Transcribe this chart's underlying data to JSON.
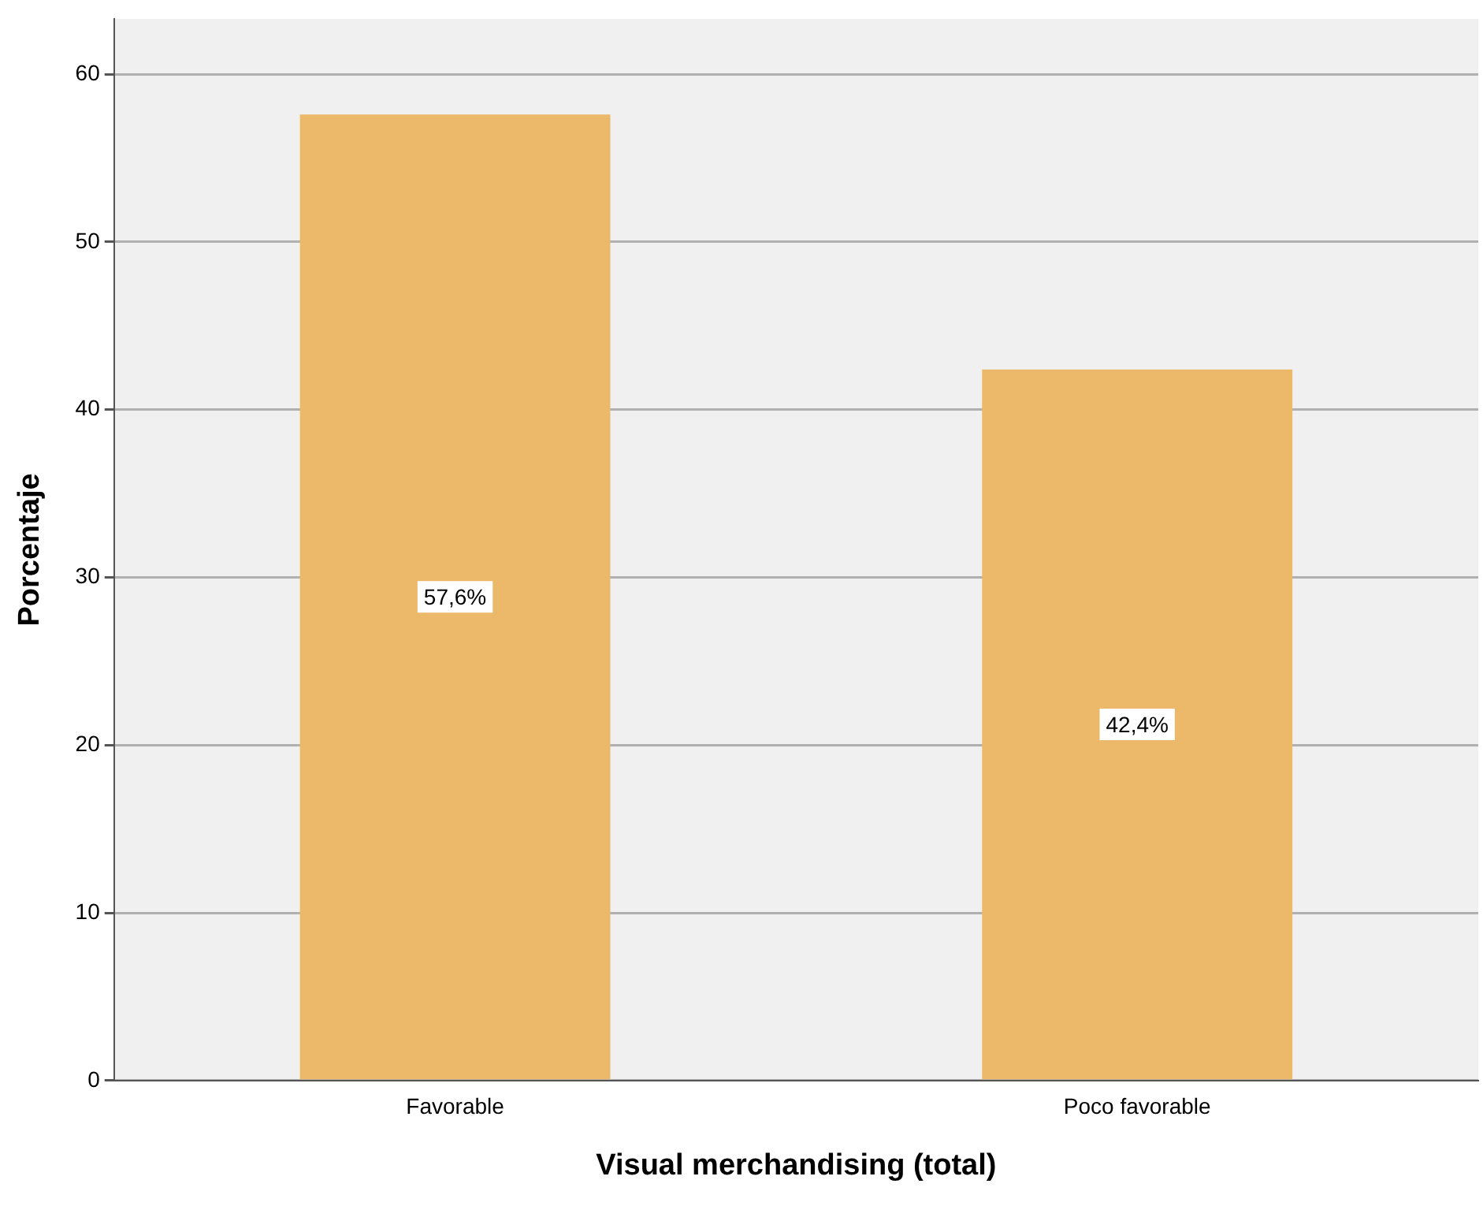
{
  "chart_data": {
    "type": "bar",
    "xlabel": "Visual merchandising (total)",
    "ylabel": "Porcentaje",
    "categories": [
      "Favorable",
      "Poco favorable"
    ],
    "values": [
      57.6,
      42.4
    ],
    "color": "#ecb86a",
    "value_labels": [
      "57,6%",
      "42,4%"
    ],
    "ylim": [
      0,
      63.3
    ],
    "yticks": [
      0,
      10,
      20,
      30,
      40,
      50,
      60
    ],
    "grid": "y",
    "legend": false
  }
}
